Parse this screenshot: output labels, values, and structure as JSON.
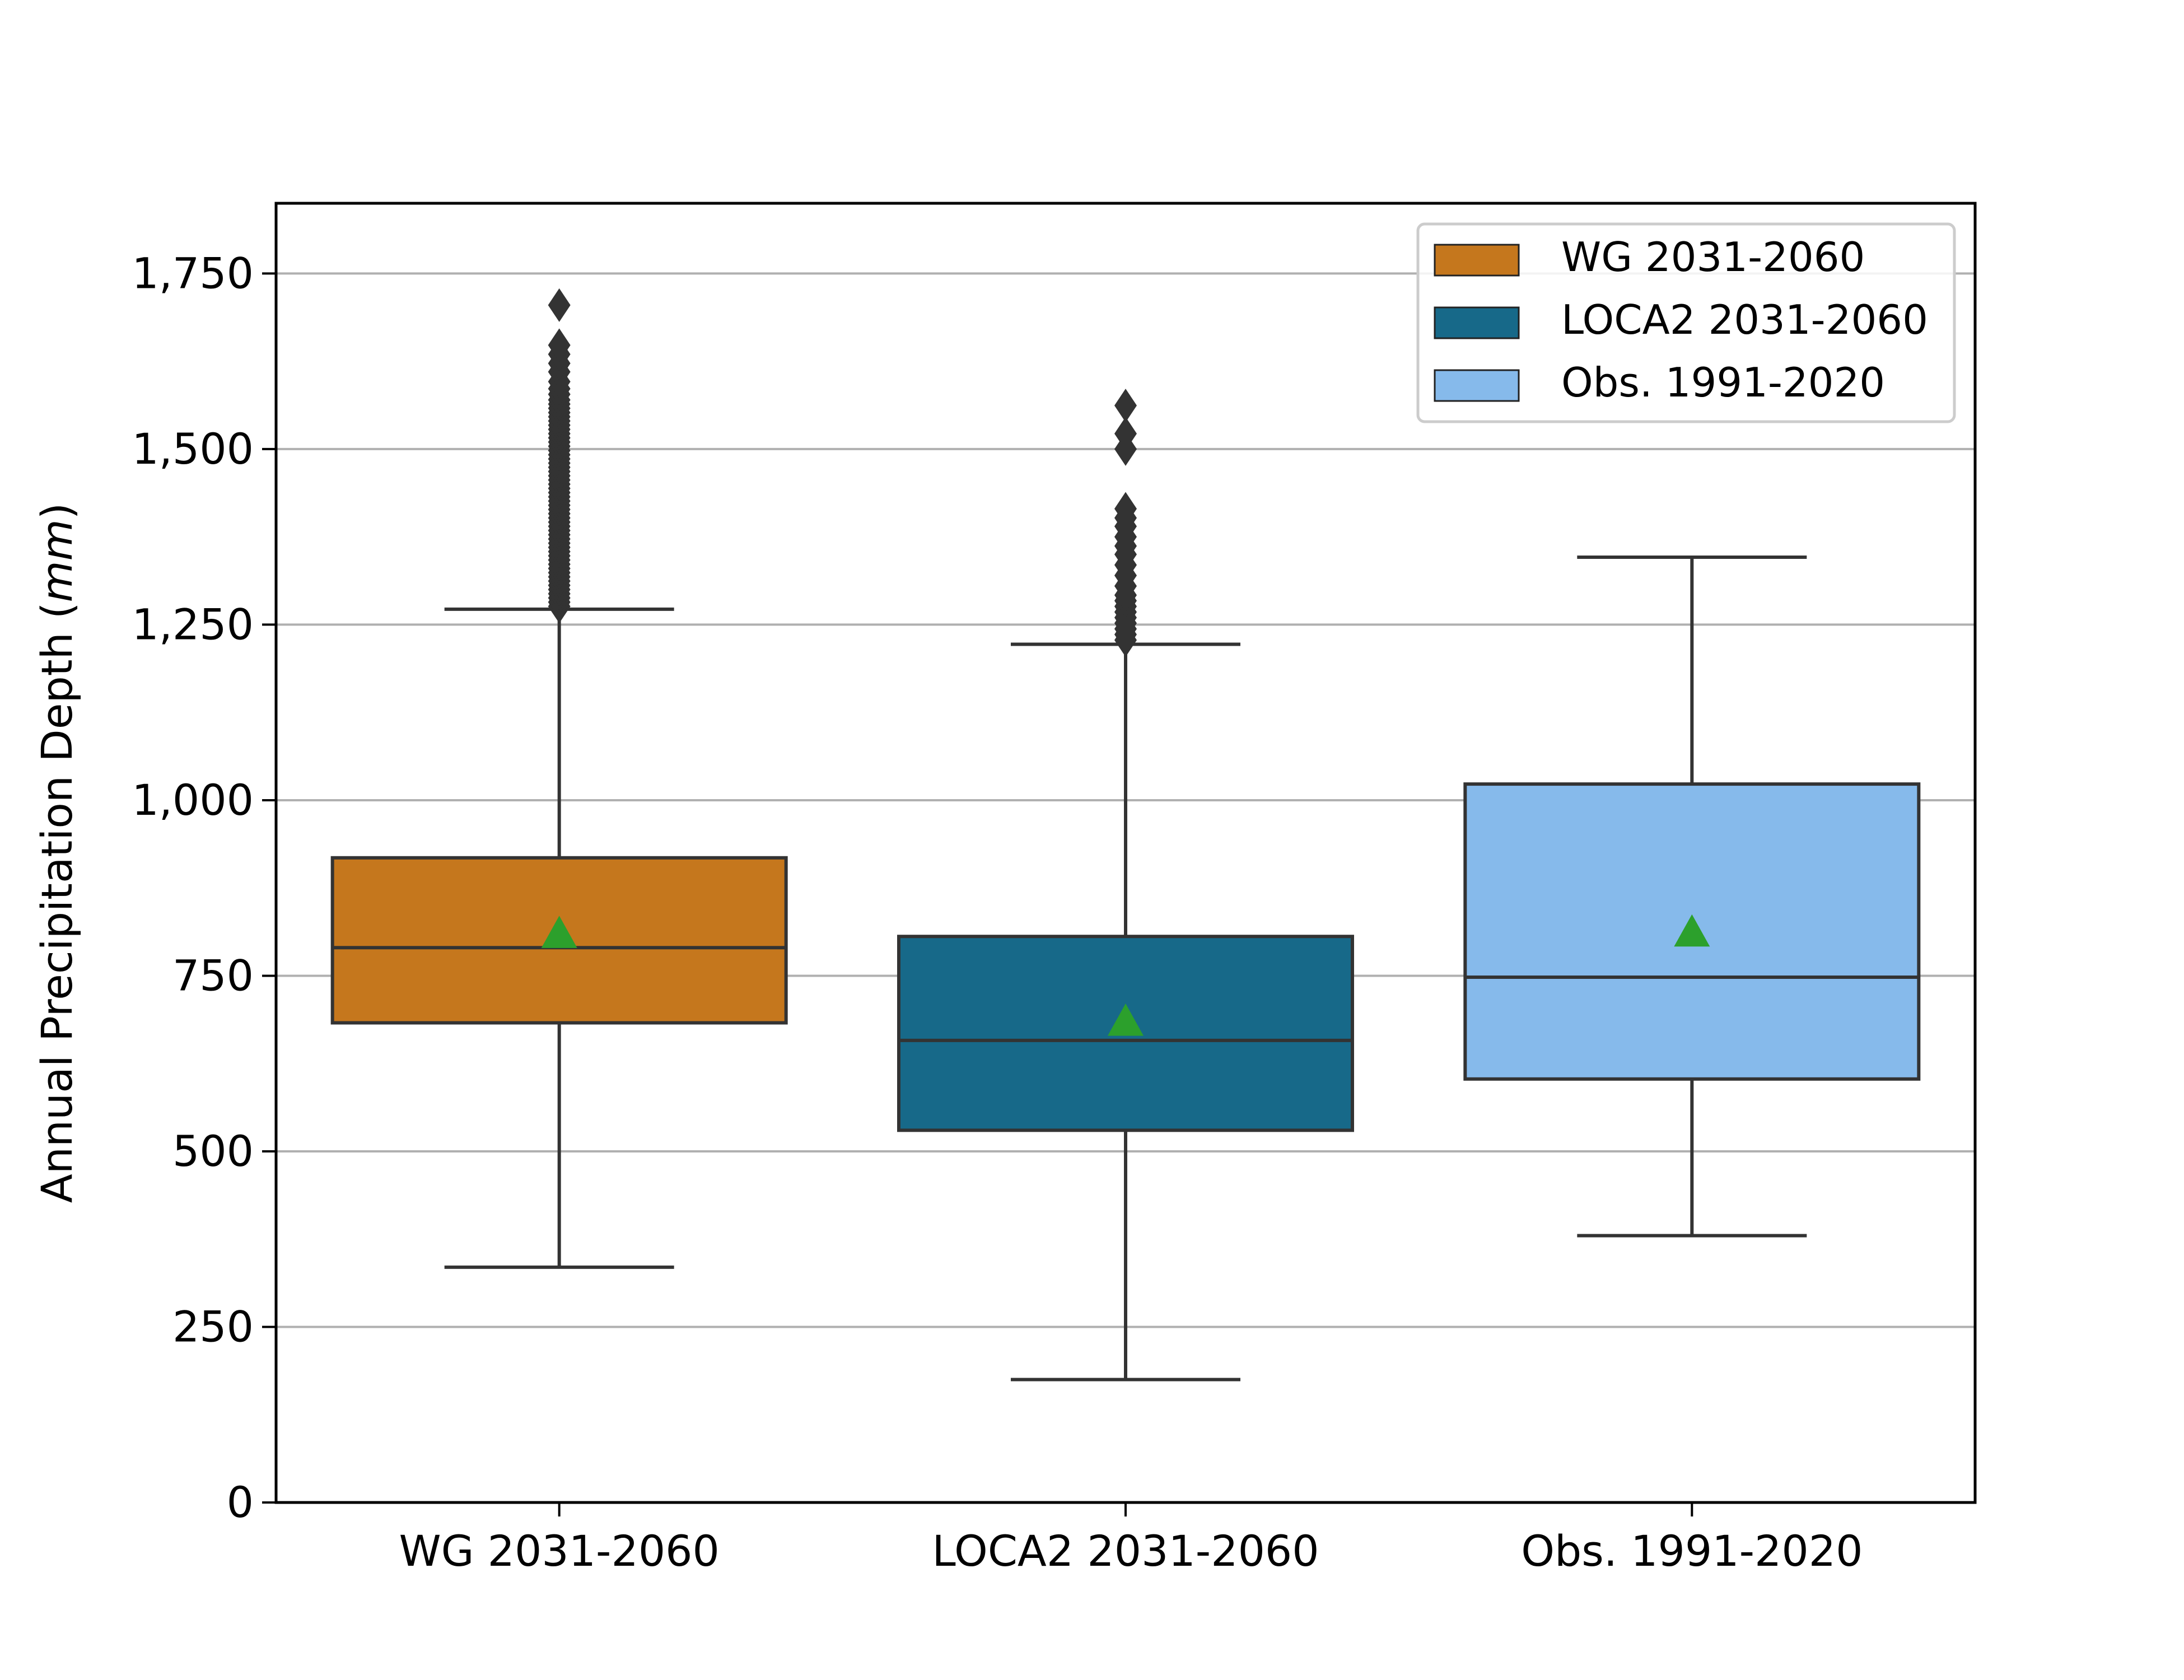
{
  "chart_data": {
    "type": "box",
    "ylabel_prefix": "Annual Precipitation Depth (",
    "ylabel_unit": "mm",
    "ylabel_suffix": ")",
    "ylim": [
      0,
      1850
    ],
    "yticks": [
      {
        "value": 0,
        "label": "0"
      },
      {
        "value": 250,
        "label": "250"
      },
      {
        "value": 500,
        "label": "500"
      },
      {
        "value": 750,
        "label": "750"
      },
      {
        "value": 1000,
        "label": "1,000"
      },
      {
        "value": 1250,
        "label": "1,250"
      },
      {
        "value": 1500,
        "label": "1,500"
      },
      {
        "value": 1750,
        "label": "1,750"
      }
    ],
    "grid": "horizontal",
    "legend_position": "top-right",
    "colors": {
      "box_edge": "#333333",
      "mean_marker": "#2ca02c",
      "grid": "#b0b0b0"
    },
    "series": [
      {
        "name": "WG 2031-2060",
        "color": "#c5771d",
        "whisker_low": 335,
        "q1": 683,
        "median": 790,
        "q3": 918,
        "whisker_high": 1272,
        "mean": 810,
        "outliers": [
          1276,
          1282,
          1288,
          1294,
          1300,
          1306,
          1312,
          1318,
          1324,
          1330,
          1336,
          1342,
          1348,
          1354,
          1360,
          1366,
          1372,
          1378,
          1384,
          1390,
          1396,
          1402,
          1408,
          1414,
          1420,
          1426,
          1432,
          1438,
          1444,
          1450,
          1456,
          1462,
          1468,
          1474,
          1480,
          1486,
          1492,
          1498,
          1504,
          1510,
          1516,
          1522,
          1528,
          1534,
          1540,
          1546,
          1552,
          1558,
          1564,
          1570,
          1578,
          1586,
          1596,
          1610,
          1622,
          1635,
          1648,
          1705
        ]
      },
      {
        "name": "LOCA2 2031-2060",
        "color": "#176989",
        "whisker_low": 175,
        "q1": 530,
        "median": 658,
        "q3": 806,
        "whisker_high": 1222,
        "mean": 685,
        "outliers": [
          1228,
          1236,
          1244,
          1252,
          1260,
          1268,
          1276,
          1284,
          1292,
          1305,
          1320,
          1335,
          1350,
          1362,
          1375,
          1390,
          1402,
          1415,
          1500,
          1522,
          1562
        ]
      },
      {
        "name": "Obs. 1991-2020",
        "color": "#86baeb",
        "whisker_low": 380,
        "q1": 603,
        "median": 748,
        "q3": 1023,
        "whisker_high": 1346,
        "mean": 812,
        "outliers": []
      }
    ]
  }
}
